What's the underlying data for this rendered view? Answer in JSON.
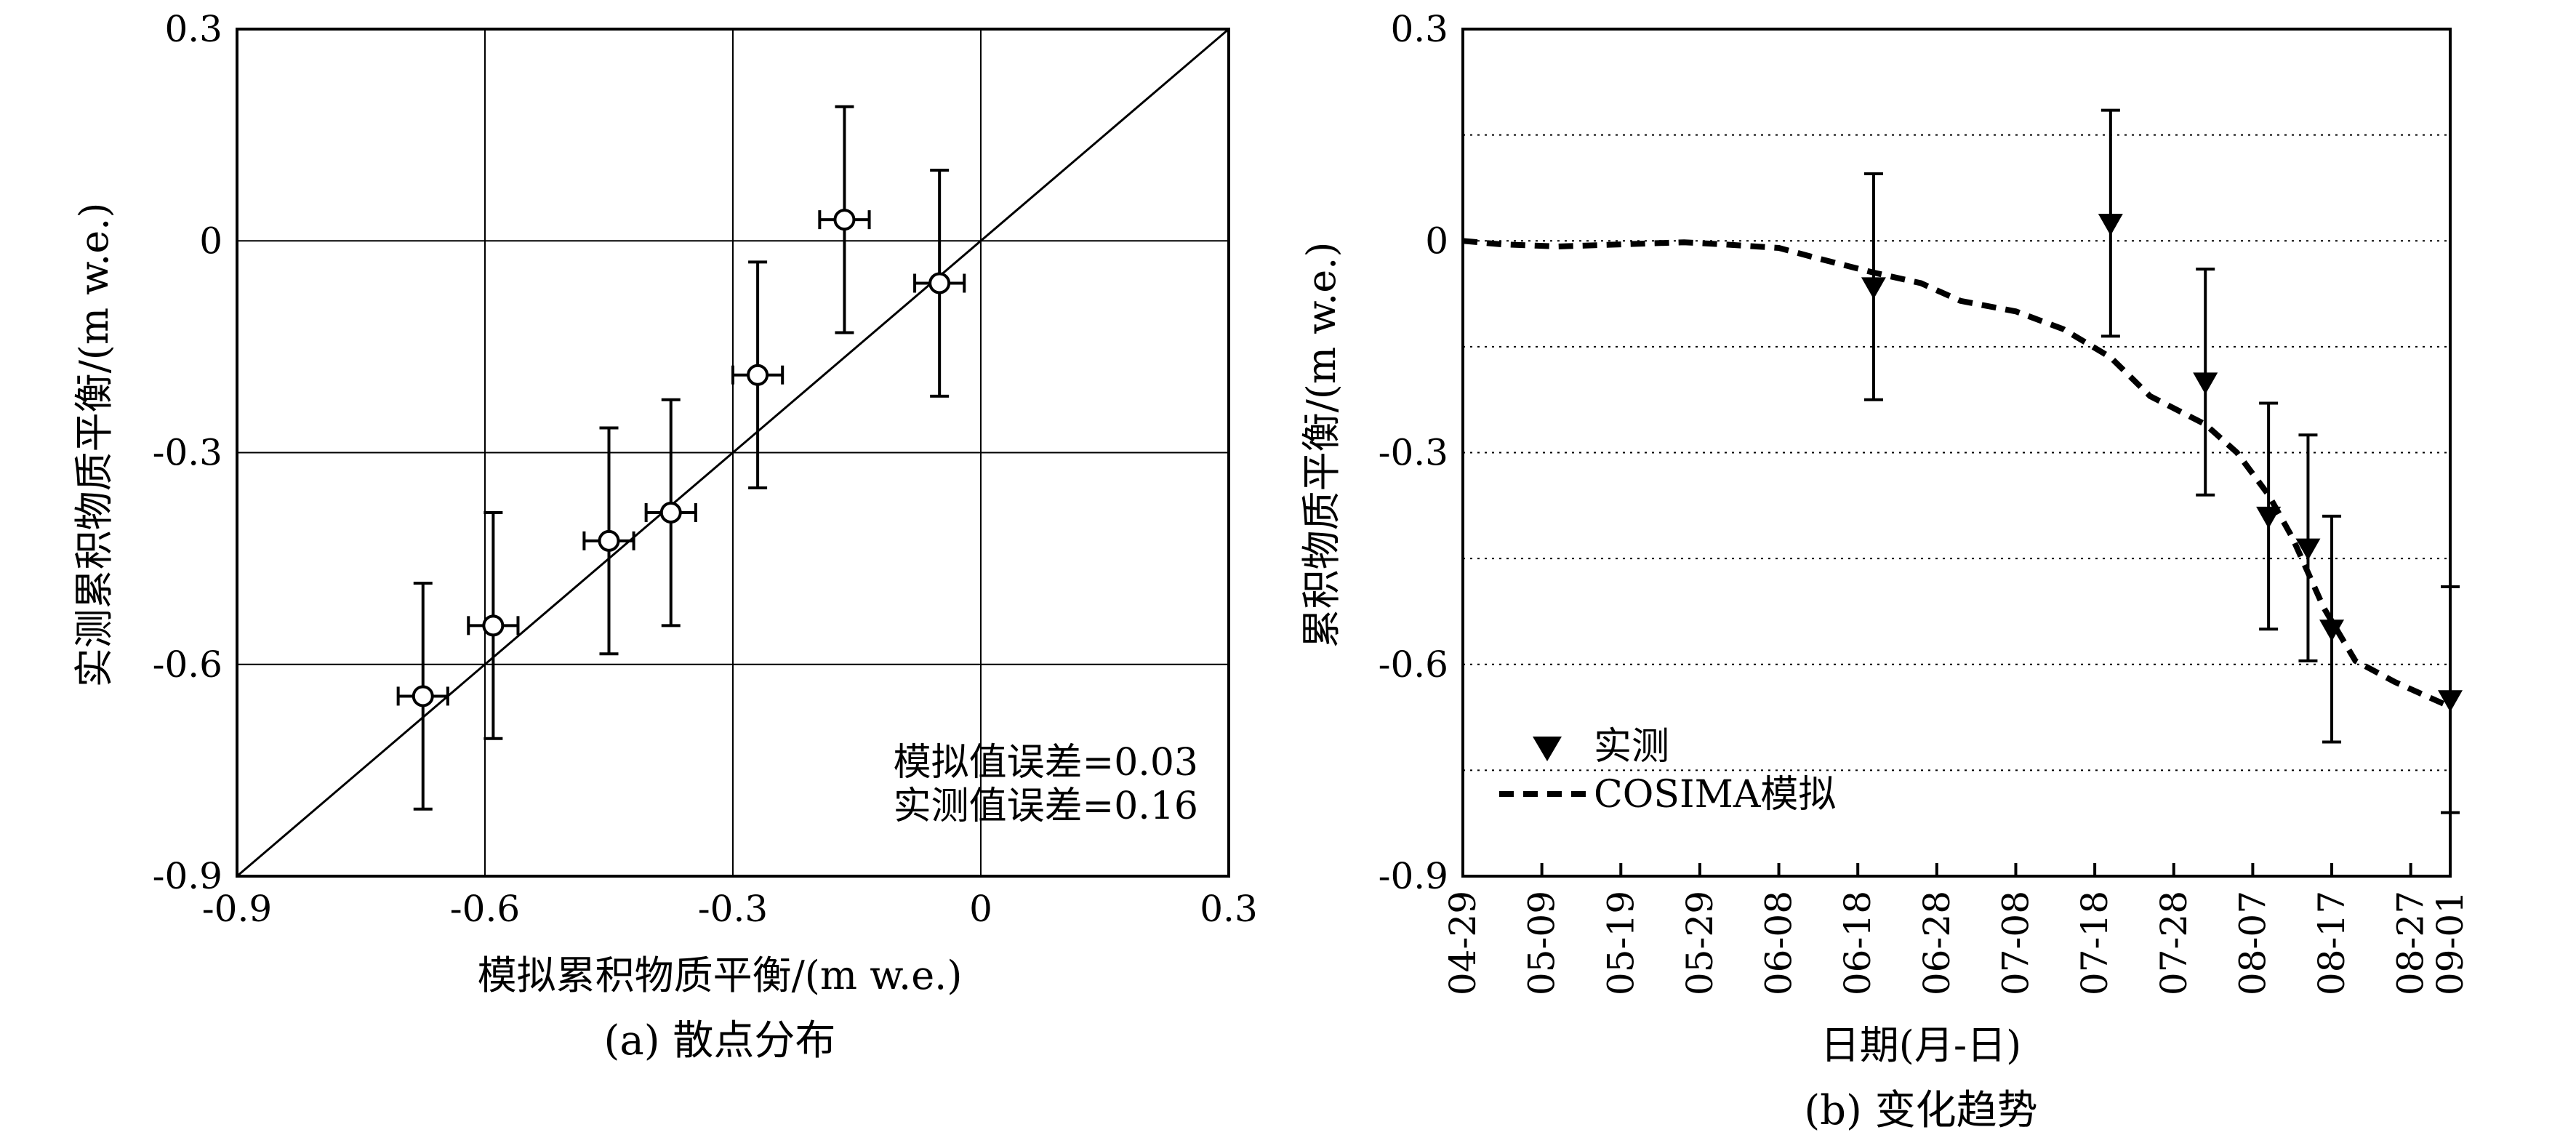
{
  "chart_data": [
    {
      "type": "scatter",
      "caption": "(a) 散点分布",
      "xlabel": "模拟累积物质平衡/(m w.e.)",
      "ylabel": "实测累积物质平衡/(m w.e.)",
      "xlim": [
        -0.9,
        0.3
      ],
      "ylim": [
        -0.9,
        0.3
      ],
      "xticks": [
        -0.9,
        -0.6,
        -0.3,
        0,
        0.3
      ],
      "yticks": [
        -0.9,
        -0.6,
        -0.3,
        0,
        0.3
      ],
      "xtick_labels": [
        "-0.9",
        "-0.6",
        "-0.3",
        "0",
        "0.3"
      ],
      "ytick_labels": [
        "-0.9",
        "-0.6",
        "-0.3",
        "0",
        "0.3"
      ],
      "grid": true,
      "reference_line": "1:1",
      "annotations": [
        "模拟值误差=0.03",
        "实测值误差=0.16"
      ],
      "x_error": 0.03,
      "y_error": 0.16,
      "points": [
        {
          "x": -0.675,
          "y": -0.645
        },
        {
          "x": -0.59,
          "y": -0.545
        },
        {
          "x": -0.45,
          "y": -0.425
        },
        {
          "x": -0.375,
          "y": -0.385
        },
        {
          "x": -0.27,
          "y": -0.19
        },
        {
          "x": -0.165,
          "y": 0.03
        },
        {
          "x": -0.05,
          "y": -0.06
        }
      ]
    },
    {
      "type": "line",
      "caption": "(b) 变化趋势",
      "xlabel": "日期(月-日)",
      "ylabel": "累积物质平衡/(m w.e.)",
      "ylim": [
        -0.9,
        0.3
      ],
      "yticks": [
        -0.9,
        -0.6,
        -0.3,
        0,
        0.3
      ],
      "ytick_labels": [
        "-0.9",
        "-0.6",
        "-0.3",
        "0",
        "0.3"
      ],
      "xticks": [
        "04-29",
        "05-09",
        "05-19",
        "05-29",
        "06-08",
        "06-18",
        "06-28",
        "07-08",
        "07-18",
        "07-28",
        "08-07",
        "08-17",
        "08-27",
        "09-01"
      ],
      "grid": "horizontal-dotted",
      "legend": {
        "position": "lower-left",
        "entries": [
          {
            "label": "实测",
            "marker": "triangle-down"
          },
          {
            "label": "COSIMA模拟",
            "style": "dashed"
          }
        ]
      },
      "series": [
        {
          "name": "实测",
          "kind": "points-with-error",
          "error": 0.16,
          "points": [
            {
              "x": "06-20",
              "y": -0.065
            },
            {
              "x": "07-20",
              "y": 0.025
            },
            {
              "x": "08-01",
              "y": -0.2
            },
            {
              "x": "08-09",
              "y": -0.39
            },
            {
              "x": "08-14",
              "y": -0.435
            },
            {
              "x": "08-17",
              "y": -0.55
            },
            {
              "x": "09-01",
              "y": -0.65
            }
          ]
        },
        {
          "name": "COSIMA模拟",
          "kind": "dashed-line",
          "points": [
            {
              "x": "04-29",
              "y": 0.0
            },
            {
              "x": "05-04",
              "y": -0.005
            },
            {
              "x": "05-11",
              "y": -0.008
            },
            {
              "x": "05-19",
              "y": -0.005
            },
            {
              "x": "05-27",
              "y": -0.002
            },
            {
              "x": "06-01",
              "y": -0.005
            },
            {
              "x": "06-08",
              "y": -0.01
            },
            {
              "x": "06-13",
              "y": -0.025
            },
            {
              "x": "06-20",
              "y": -0.045
            },
            {
              "x": "06-26",
              "y": -0.06
            },
            {
              "x": "07-01",
              "y": -0.085
            },
            {
              "x": "07-08",
              "y": -0.1
            },
            {
              "x": "07-14",
              "y": -0.125
            },
            {
              "x": "07-20",
              "y": -0.165
            },
            {
              "x": "07-25",
              "y": -0.22
            },
            {
              "x": "08-01",
              "y": -0.26
            },
            {
              "x": "08-05",
              "y": -0.3
            },
            {
              "x": "08-09",
              "y": -0.36
            },
            {
              "x": "08-12",
              "y": -0.42
            },
            {
              "x": "08-16",
              "y": -0.52
            },
            {
              "x": "08-20",
              "y": -0.595
            },
            {
              "x": "08-25",
              "y": -0.625
            },
            {
              "x": "09-01",
              "y": -0.66
            }
          ]
        }
      ]
    }
  ]
}
